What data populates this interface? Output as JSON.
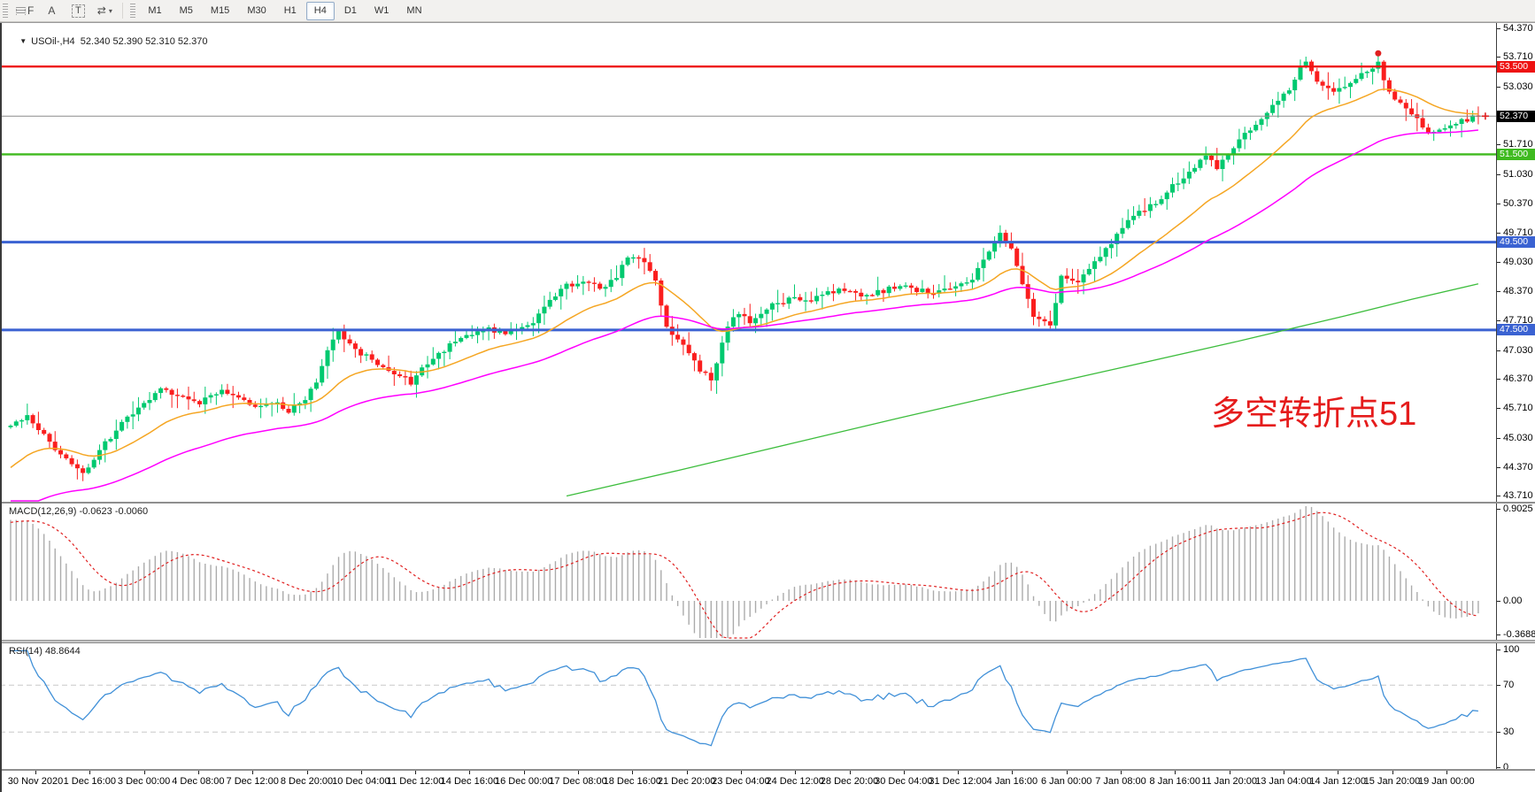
{
  "toolbar": {
    "tools": [
      {
        "id": "grid-f",
        "glyph": "F",
        "grid": true
      },
      {
        "id": "insert-text",
        "glyph": "A"
      },
      {
        "id": "text-label",
        "glyph": "T",
        "boxed": true
      },
      {
        "id": "arrows",
        "glyph": "⇄",
        "dropdown": true
      }
    ],
    "caret_glyph": "▾",
    "timeframes": [
      "M1",
      "M5",
      "M15",
      "M30",
      "H1",
      "H4",
      "D1",
      "W1",
      "MN"
    ],
    "active_timeframe": "H4"
  },
  "chart": {
    "header_arrow": "▼",
    "symbol": "USOil-",
    "timeframe": "H4",
    "header_text": "USOil-,H4  52.340 52.390 52.310 52.370",
    "ohlc": {
      "open": "52.340",
      "high": "52.390",
      "low": "52.310",
      "close": "52.370"
    }
  },
  "chart_data": {
    "type": "candlestick",
    "symbol": "USOil-",
    "timeframe": "H4",
    "candles_count": 265,
    "last_close": 52.37,
    "y_ticks": [
      "54.370",
      "53.710",
      "53.030",
      "52.370",
      "51.710",
      "51.030",
      "50.370",
      "49.710",
      "49.030",
      "48.370",
      "47.710",
      "47.030",
      "46.370",
      "45.710",
      "45.030",
      "44.370",
      "43.710"
    ],
    "x_labels": [
      "30 Nov 2020",
      "1 Dec 16:00",
      "3 Dec 00:00",
      "4 Dec 08:00",
      "7 Dec 12:00",
      "8 Dec 20:00",
      "10 Dec 04:00",
      "11 Dec 12:00",
      "14 Dec 16:00",
      "16 Dec 00:00",
      "17 Dec 08:00",
      "18 Dec 16:00",
      "21 Dec 20:00",
      "23 Dec 04:00",
      "24 Dec 12:00",
      "28 Dec 20:00",
      "30 Dec 04:00",
      "31 Dec 12:00",
      "4 Jan 16:00",
      "6 Jan 00:00",
      "7 Jan 08:00",
      "8 Jan 16:00",
      "11 Jan 20:00",
      "13 Jan 04:00",
      "14 Jan 12:00",
      "15 Jan 20:00",
      "19 Jan 00:00"
    ],
    "price_waypoints": [
      [
        0,
        45.35
      ],
      [
        3,
        45.55
      ],
      [
        7,
        44.95
      ],
      [
        10,
        44.55
      ],
      [
        13,
        44.2
      ],
      [
        16,
        44.75
      ],
      [
        20,
        45.4
      ],
      [
        24,
        45.8
      ],
      [
        27,
        46.15
      ],
      [
        30,
        46.05
      ],
      [
        34,
        45.85
      ],
      [
        38,
        46.1
      ],
      [
        41,
        45.95
      ],
      [
        44,
        45.75
      ],
      [
        47,
        45.9
      ],
      [
        50,
        45.65
      ],
      [
        53,
        45.95
      ],
      [
        55,
        46.3
      ],
      [
        57,
        47.05
      ],
      [
        59,
        47.45
      ],
      [
        61,
        47.15
      ],
      [
        65,
        46.8
      ],
      [
        68,
        46.6
      ],
      [
        72,
        46.3
      ],
      [
        76,
        46.9
      ],
      [
        79,
        47.15
      ],
      [
        82,
        47.4
      ],
      [
        86,
        47.5
      ],
      [
        90,
        47.45
      ],
      [
        94,
        47.7
      ],
      [
        97,
        48.15
      ],
      [
        100,
        48.5
      ],
      [
        103,
        48.6
      ],
      [
        106,
        48.45
      ],
      [
        109,
        48.7
      ],
      [
        111,
        49.15
      ],
      [
        114,
        49.05
      ],
      [
        116,
        48.6
      ],
      [
        118,
        47.6
      ],
      [
        121,
        47.1
      ],
      [
        124,
        46.6
      ],
      [
        126,
        46.35
      ],
      [
        128,
        47.2
      ],
      [
        130,
        47.85
      ],
      [
        133,
        47.7
      ],
      [
        137,
        48.05
      ],
      [
        140,
        48.2
      ],
      [
        143,
        48.15
      ],
      [
        146,
        48.3
      ],
      [
        150,
        48.45
      ],
      [
        153,
        48.3
      ],
      [
        156,
        48.35
      ],
      [
        160,
        48.5
      ],
      [
        163,
        48.4
      ],
      [
        166,
        48.35
      ],
      [
        170,
        48.5
      ],
      [
        173,
        48.6
      ],
      [
        176,
        49.35
      ],
      [
        178,
        49.65
      ],
      [
        180,
        49.3
      ],
      [
        182,
        48.55
      ],
      [
        184,
        47.8
      ],
      [
        187,
        47.65
      ],
      [
        189,
        48.7
      ],
      [
        192,
        48.6
      ],
      [
        194,
        48.95
      ],
      [
        197,
        49.35
      ],
      [
        200,
        49.85
      ],
      [
        203,
        50.15
      ],
      [
        206,
        50.4
      ],
      [
        208,
        50.65
      ],
      [
        211,
        51.0
      ],
      [
        213,
        51.25
      ],
      [
        215,
        51.5
      ],
      [
        217,
        51.2
      ],
      [
        220,
        51.7
      ],
      [
        223,
        52.05
      ],
      [
        225,
        52.3
      ],
      [
        227,
        52.6
      ],
      [
        230,
        53.0
      ],
      [
        232,
        53.45
      ],
      [
        233,
        53.65
      ],
      [
        235,
        53.1
      ],
      [
        238,
        52.95
      ],
      [
        240,
        53.1
      ],
      [
        243,
        53.3
      ],
      [
        245,
        53.45
      ],
      [
        246,
        53.55
      ],
      [
        248,
        52.95
      ],
      [
        250,
        52.65
      ],
      [
        253,
        52.3
      ],
      [
        255,
        52.05
      ],
      [
        257,
        52.0
      ],
      [
        259,
        52.15
      ],
      [
        261,
        52.25
      ],
      [
        264,
        52.37
      ]
    ],
    "hlines": [
      {
        "price": 53.5,
        "label": "53.500",
        "color": "#ee1212",
        "width": 2.4
      },
      {
        "price": 51.5,
        "label": "51.500",
        "color": "#3fba1f",
        "width": 2.4
      },
      {
        "price": 49.5,
        "label": "49.500",
        "color": "#3a62d2",
        "width": 3
      },
      {
        "price": 47.5,
        "label": "47.500",
        "color": "#3a62d2",
        "width": 3
      }
    ],
    "current_price": {
      "price": 52.37,
      "label": "52.370",
      "tag_bg": "#000000"
    },
    "moving_averages": [
      {
        "name": "fast",
        "color": "#f5a623",
        "period": 21
      },
      {
        "name": "medium",
        "color": "#ff00ff",
        "period": 55
      },
      {
        "name": "slow",
        "color": "#3dbd3d",
        "waypoints": [
          [
            100,
            43.72
          ],
          [
            120,
            44.3
          ],
          [
            140,
            44.9
          ],
          [
            160,
            45.5
          ],
          [
            180,
            46.08
          ],
          [
            200,
            46.65
          ],
          [
            220,
            47.22
          ],
          [
            240,
            47.82
          ],
          [
            252,
            48.2
          ],
          [
            264,
            48.55
          ]
        ]
      }
    ],
    "annotation": {
      "text": "多空转折点51",
      "color": "#e51c1c",
      "x": 1368,
      "y": 448,
      "font_size": 38
    },
    "markers": [
      {
        "type": "dot",
        "index": 246,
        "price": 53.8,
        "color": "#e02020"
      },
      {
        "type": "cross",
        "index": 264,
        "price": 52.37,
        "dx": 8,
        "color": "#e02020"
      }
    ],
    "style": {
      "bull": "#00c96f",
      "bear": "#fa1e1e",
      "macd_hist": "#ababab",
      "macd_signal": "#e02020",
      "rsi_line": "#4090d8",
      "rsi_level": "#c8c8c8",
      "current_line": "#8a8a8a"
    },
    "indicators": {
      "macd": {
        "label": "MACD(12,26,9) -0.0623 -0.0060",
        "params": [
          12,
          26,
          9
        ],
        "values": [
          -0.0623,
          -0.006
        ],
        "y_ticks": [
          "0.9025",
          "0.00",
          "-0.3688"
        ],
        "max": 0.9025,
        "min": -0.3688
      },
      "rsi": {
        "label": "RSI(14) 48.8644",
        "period": 14,
        "value": 48.8644,
        "y_ticks": [
          "100",
          "70",
          "30",
          "0"
        ],
        "levels": [
          70,
          30
        ]
      }
    }
  }
}
